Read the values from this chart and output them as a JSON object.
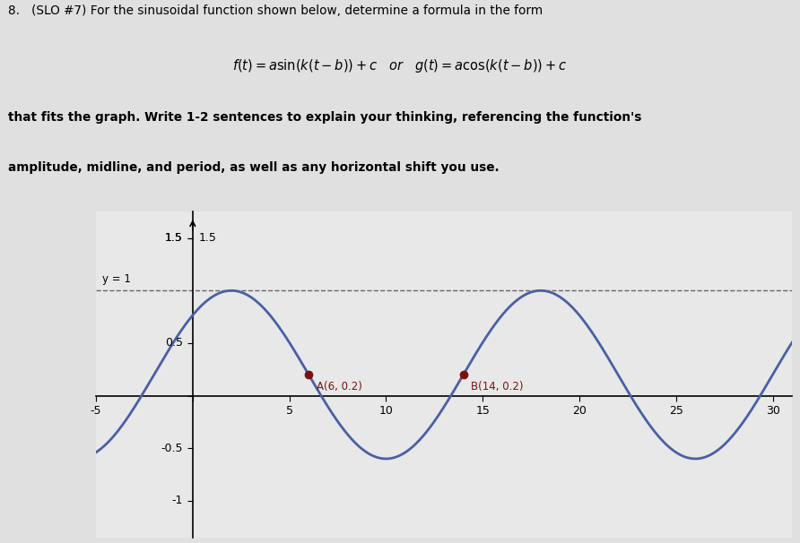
{
  "amplitude": 0.8,
  "midline": 0.2,
  "period": 16,
  "phase_b": -2,
  "xmin": -5,
  "xmax": 31,
  "ymin": -1.35,
  "ymax": 1.75,
  "x_ticks": [
    -5,
    0,
    5,
    10,
    15,
    20,
    25,
    30
  ],
  "y_tick_vals": [
    1.5,
    0.5,
    -0.5,
    -1
  ],
  "dashed_y": 1.0,
  "dashed_label": "y = 1",
  "point_A": [
    6,
    0.2
  ],
  "point_B": [
    14,
    0.2
  ],
  "point_color": "#7a1010",
  "curve_color": "#4a5fa5",
  "dashed_color": "#666666",
  "bg_color": "#e8e8e8",
  "fig_bg_color": "#e0e0e0",
  "curve_linewidth": 2.0,
  "dashed_linewidth": 1.0
}
